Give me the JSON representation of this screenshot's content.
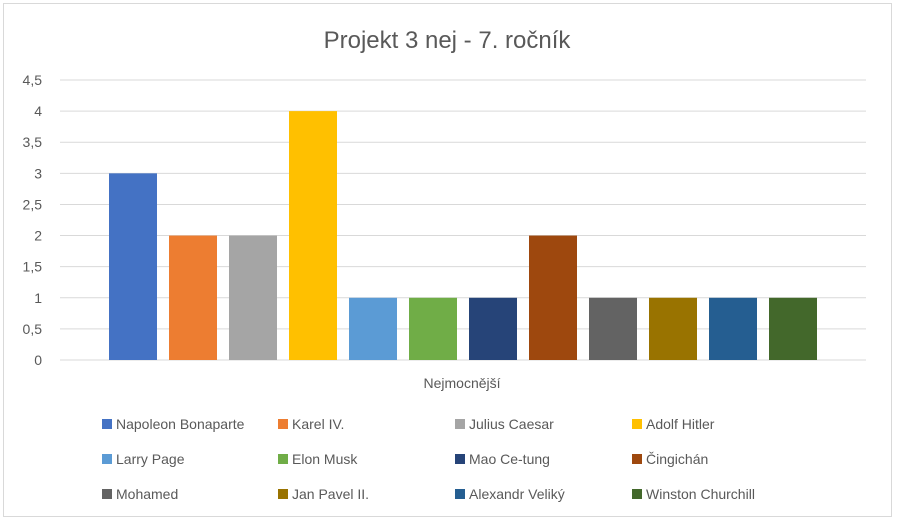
{
  "chart_data": {
    "type": "bar",
    "title": "Projekt 3 nej - 7. ročník",
    "category": "Nejmocnější",
    "ylim": [
      0,
      4.5
    ],
    "y_ticks": [
      "0",
      "0,5",
      "1",
      "1,5",
      "2",
      "2,5",
      "3",
      "3,5",
      "4",
      "4,5"
    ],
    "grid": true,
    "legend_position": "bottom",
    "series": [
      {
        "name": "Napoleon Bonaparte",
        "value": 3,
        "color": "#4472C4"
      },
      {
        "name": "Karel IV.",
        "value": 2,
        "color": "#ED7D31"
      },
      {
        "name": "Julius Caesar",
        "value": 2,
        "color": "#A5A5A5"
      },
      {
        "name": "Adolf Hitler",
        "value": 4,
        "color": "#FFC000"
      },
      {
        "name": "Larry Page",
        "value": 1,
        "color": "#5B9BD5"
      },
      {
        "name": "Elon Musk",
        "value": 1,
        "color": "#70AD47"
      },
      {
        "name": "Mao Ce-tung",
        "value": 1,
        "color": "#264478"
      },
      {
        "name": "Čingichán",
        "value": 2,
        "color": "#9E480E"
      },
      {
        "name": "Mohamed",
        "value": 1,
        "color": "#636363"
      },
      {
        "name": "Jan Pavel II.",
        "value": 1,
        "color": "#997300"
      },
      {
        "name": "Alexandr Veliký",
        "value": 1,
        "color": "#255E91"
      },
      {
        "name": "Winston Churchill",
        "value": 1,
        "color": "#43682B"
      }
    ]
  }
}
